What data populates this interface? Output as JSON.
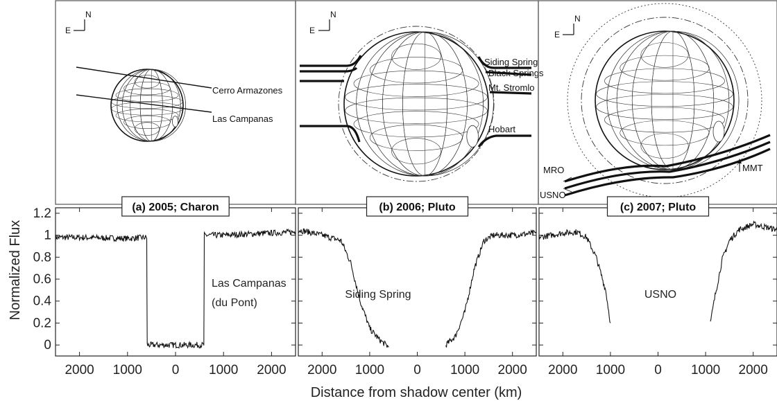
{
  "maps": [
    {
      "compass": {
        "n": "N",
        "e": "E"
      },
      "chord_labels": [
        "Cerro Armazones",
        "Las Campanas"
      ]
    },
    {
      "compass": {
        "n": "N",
        "e": "E"
      },
      "chord_labels": [
        "Siding Spring",
        "Black Springs",
        "Mt. Stromlo",
        "Hobart"
      ]
    },
    {
      "compass": {
        "n": "N",
        "e": "E"
      },
      "chord_labels": [
        "MRO",
        "USNO",
        "MMT"
      ]
    }
  ],
  "chart_data": {
    "type": "line",
    "ylabel": "Normalized Flux",
    "xlabel": "Distance from shadow center (km)",
    "xlim": [
      -2500,
      2500
    ],
    "ylim": [
      -0.1,
      1.25
    ],
    "x_ticks": [
      2000,
      1000,
      0,
      1000,
      2000
    ],
    "y_ticks": [
      "0",
      "0.2",
      "0.4",
      "0.6",
      "0.8",
      "1",
      "1.2"
    ],
    "panels": [
      {
        "title": "(a) 2005; Charon",
        "station_label": [
          "Las Campanas",
          "(du Pont)"
        ],
        "series": [
          {
            "x": [
              -2500,
              -2000,
              -1000,
              -600,
              -590,
              0,
              590,
              600,
              1000,
              2000,
              2500
            ],
            "y": [
              0.98,
              0.98,
              0.97,
              0.98,
              0.0,
              0.0,
              0.0,
              1.0,
              1.0,
              1.02,
              1.03
            ]
          }
        ]
      },
      {
        "title": "(b) 2006; Pluto",
        "station_label": [
          "Siding Spring"
        ],
        "series": [
          {
            "x": [
              -2500,
              -2000,
              -1600,
              -1400,
              -1200,
              -1000,
              -800,
              -600
            ],
            "y": [
              1.05,
              1.0,
              0.95,
              0.75,
              0.4,
              0.15,
              0.05,
              -0.02
            ]
          },
          {
            "x": [
              600,
              800,
              1000,
              1200,
              1400,
              1600,
              2000,
              2500
            ],
            "y": [
              0.0,
              0.08,
              0.3,
              0.7,
              0.95,
              1.0,
              1.0,
              1.02
            ]
          }
        ]
      },
      {
        "title": "(c) 2007; Pluto",
        "station_label": [
          "USNO"
        ],
        "series": [
          {
            "x": [
              -2500,
              -2000,
              -1700,
              -1500,
              -1300,
              -1100,
              -1000
            ],
            "y": [
              0.98,
              1.02,
              1.03,
              0.98,
              0.8,
              0.5,
              0.2
            ]
          },
          {
            "x": [
              1100,
              1200,
              1350,
              1500,
              1700,
              2000,
              2500
            ],
            "y": [
              0.2,
              0.45,
              0.78,
              0.95,
              1.05,
              1.1,
              1.05
            ]
          }
        ]
      }
    ]
  }
}
